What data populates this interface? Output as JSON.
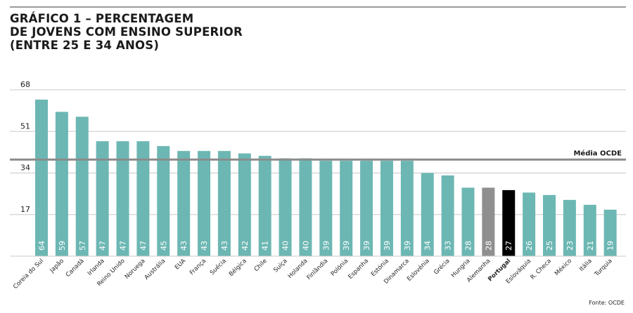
{
  "title_lines": [
    "GRÁFICO 1 – PERCENTAGEM",
    "DE JOVENS COM ENSINO SUPERIOR",
    "(ENTRE 25 E 34 ANOS)"
  ],
  "source": "Fonte: OCDE",
  "colors": {
    "bar": "#6cb7b3",
    "highlight_grey": "#8f8f8f",
    "highlight_black": "#000000",
    "average_line": "#8c8c8c",
    "grid": "#c8c8c8"
  },
  "chart_data": {
    "type": "bar",
    "title": "GRÁFICO 1 – PERCENTAGEM DE JOVENS COM ENSINO SUPERIOR (ENTRE 25 E 34 ANOS)",
    "categories": [
      "Coreia do Sul",
      "Japão",
      "Canadá",
      "Irlanda",
      "Reino Unido",
      "Noruega",
      "Austrália",
      "EUA",
      "França",
      "Suécia",
      "Bélgica",
      "Chile",
      "Suíça",
      "Holanda",
      "Finlândia",
      "Polónia",
      "Espanha",
      "Estónia",
      "Dinamarca",
      "Eslovénia",
      "Grécia",
      "Hungria",
      "Alemanha",
      "Portugal",
      "Eslováquia",
      "R. Checa",
      "México",
      "Itália",
      "Turquia"
    ],
    "values": [
      64,
      59,
      57,
      47,
      47,
      47,
      45,
      43,
      43,
      43,
      42,
      41,
      40,
      40,
      39,
      39,
      39,
      39,
      39,
      34,
      33,
      28,
      28,
      27,
      26,
      25,
      23,
      21,
      19
    ],
    "highlighted": {
      "Alemanha": "grey",
      "Portugal": "black"
    },
    "yticks": [
      17,
      34,
      51,
      68
    ],
    "ylim": [
      0,
      68
    ],
    "grid": true,
    "average": {
      "label": "Média OCDE",
      "value": 39.5
    },
    "legend": "none"
  }
}
